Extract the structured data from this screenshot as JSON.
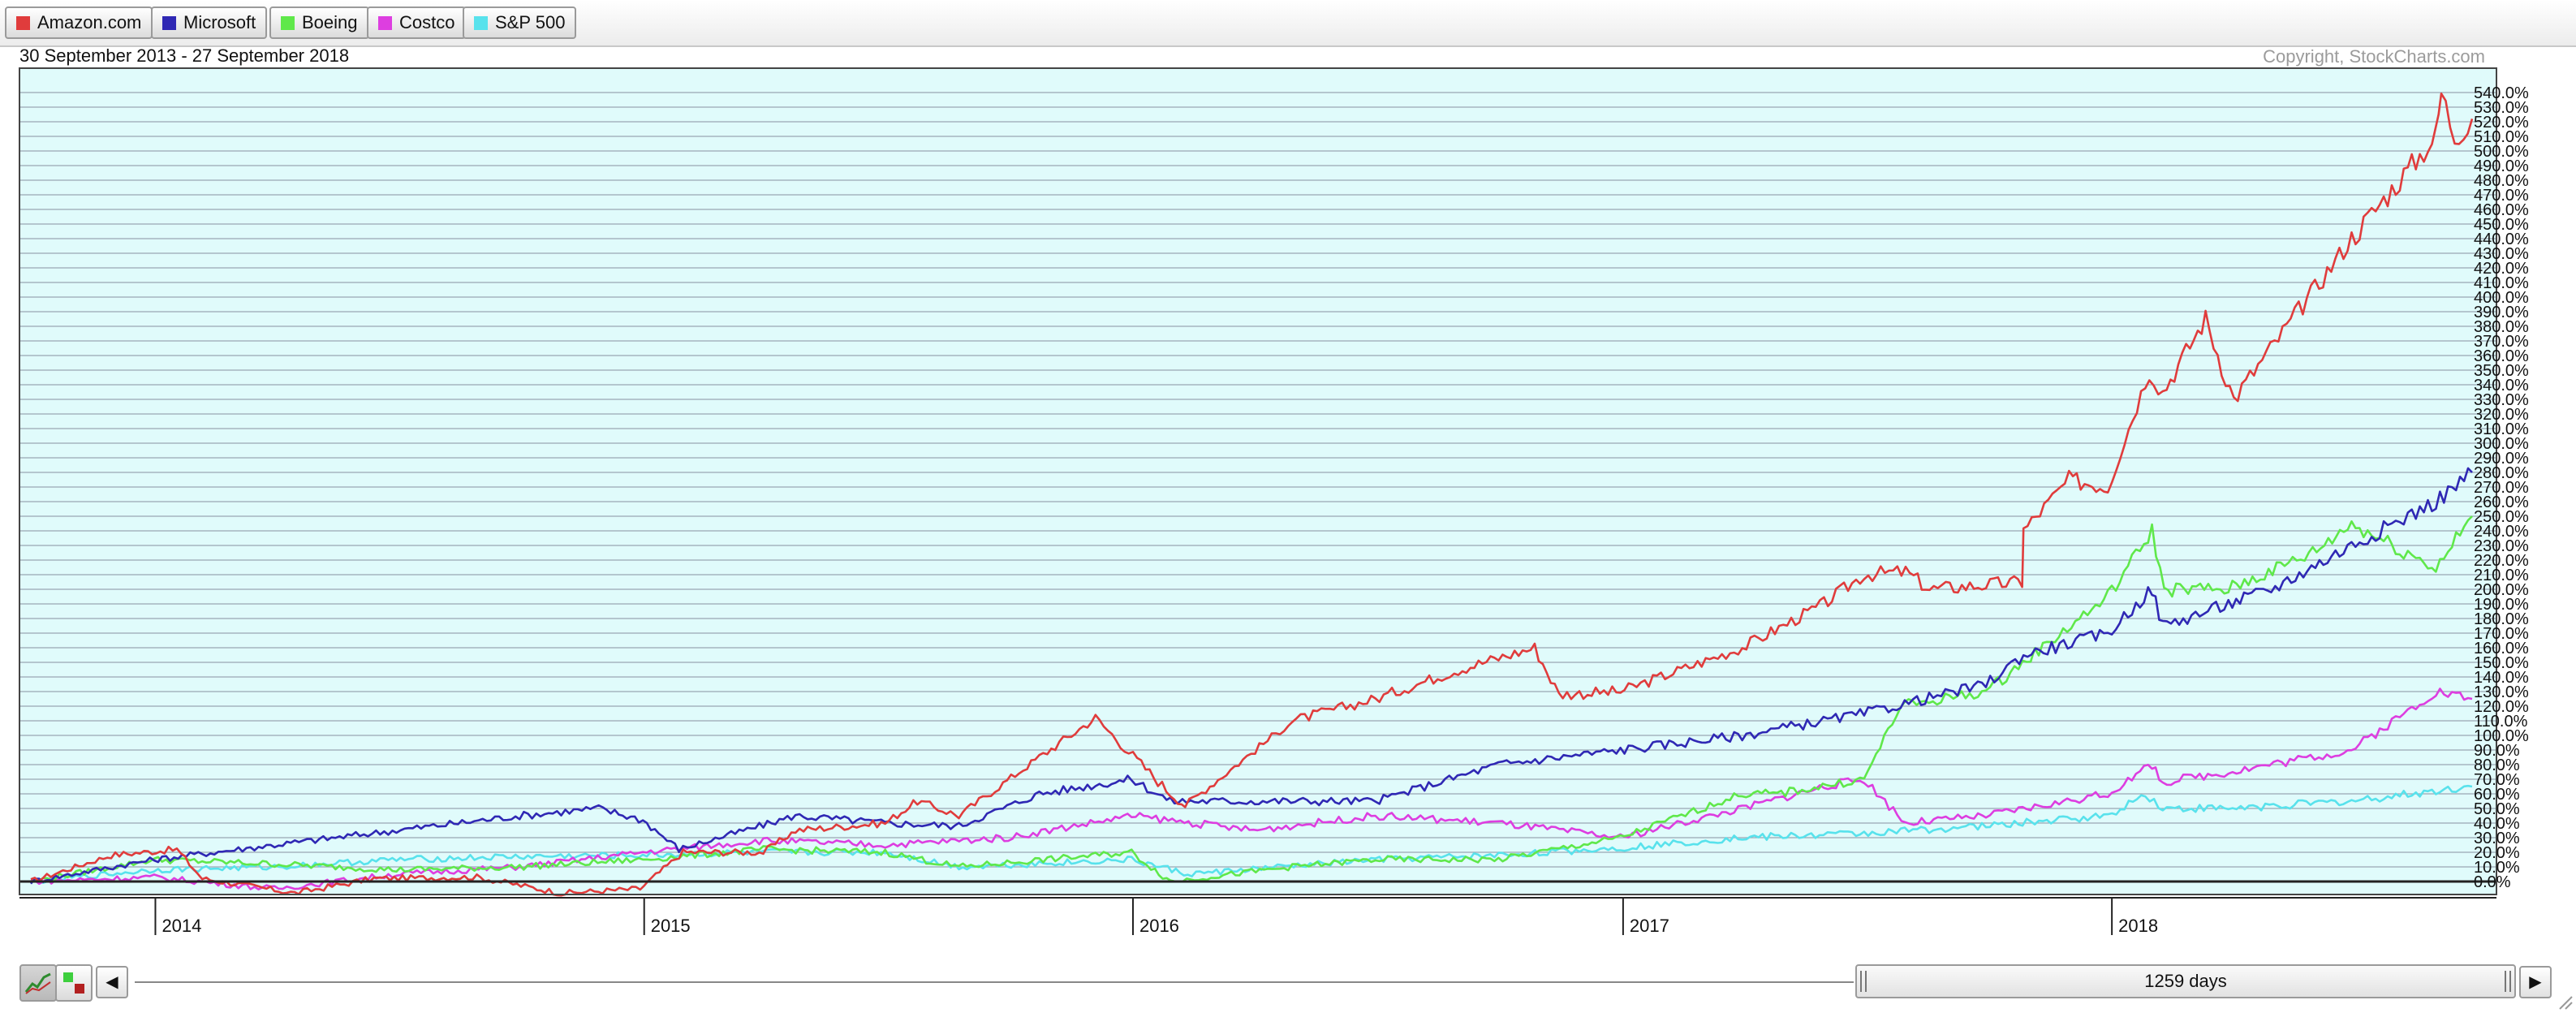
{
  "legend": [
    {
      "name": "Amazon.com",
      "color": "#e03c3c"
    },
    {
      "name": "Microsoft",
      "color": "#2f28b4"
    },
    {
      "name": "Boeing",
      "color": "#5fe84a"
    },
    {
      "name": "Costco",
      "color": "#dd3ee0"
    },
    {
      "name": "S&P 500",
      "color": "#58e2ec"
    }
  ],
  "date_range": "30 September 2013 - 27 September 2018",
  "copyright": "Copyright, StockCharts.com",
  "navigator": {
    "days_label": "1259 days",
    "prev_icon": "◀",
    "next_icon": "▶"
  },
  "chart_data": {
    "type": "line",
    "title": "",
    "date_range": "30 September 2013 - 27 September 2018",
    "x_tick_labels": [
      "2014",
      "2015",
      "2016",
      "2017",
      "2018"
    ],
    "x_range": [
      "2013-09-30",
      "2018-09-27"
    ],
    "y_unit": "%",
    "ylim": [
      0,
      540
    ],
    "y_tick_step": 10,
    "grid": true,
    "background": "#e0fbfb",
    "series": [
      {
        "name": "Amazon.com",
        "color": "#e03c3c",
        "x": [
          "2013-09-30",
          "2013-11-29",
          "2014-01-17",
          "2014-02-05",
          "2014-04-15",
          "2014-06-13",
          "2014-08-29",
          "2014-10-31",
          "2014-12-29",
          "2015-01-30",
          "2015-03-31",
          "2015-04-24",
          "2015-06-30",
          "2015-07-24",
          "2015-08-24",
          "2015-10-23",
          "2015-12-04",
          "2016-01-29",
          "2016-02-09",
          "2016-04-29",
          "2016-06-30",
          "2016-08-31",
          "2016-10-27",
          "2016-11-14",
          "2016-12-30",
          "2017-03-31",
          "2017-05-31",
          "2017-06-30",
          "2017-07-31",
          "2017-08-18",
          "2017-10-26",
          "2017-10-27",
          "2017-11-30",
          "2017-12-29",
          "2018-01-29",
          "2018-02-08",
          "2018-03-12",
          "2018-04-02",
          "2018-06-29",
          "2018-08-31",
          "2018-09-04",
          "2018-09-14",
          "2018-09-27"
        ],
        "y": [
          0,
          18,
          22,
          2,
          -8,
          2,
          3,
          -8,
          -5,
          20,
          20,
          35,
          40,
          55,
          45,
          85,
          112,
          60,
          52,
          110,
          125,
          145,
          160,
          128,
          130,
          160,
          190,
          210,
          212,
          200,
          205,
          240,
          275,
          270,
          350,
          335,
          385,
          330,
          440,
          510,
          540,
          510,
          522
        ]
      },
      {
        "name": "Microsoft",
        "color": "#2f28b4",
        "x": [
          "2013-09-30",
          "2013-12-31",
          "2014-03-31",
          "2014-06-30",
          "2014-09-30",
          "2014-11-28",
          "2014-12-31",
          "2015-01-27",
          "2015-04-24",
          "2015-06-30",
          "2015-08-24",
          "2015-10-23",
          "2015-12-31",
          "2016-01-29",
          "2016-04-22",
          "2016-06-30",
          "2016-09-30",
          "2016-12-30",
          "2017-03-31",
          "2017-06-30",
          "2017-09-29",
          "2017-10-27",
          "2017-12-29",
          "2018-01-31",
          "2018-02-08",
          "2018-03-29",
          "2018-04-30",
          "2018-06-29",
          "2018-08-31",
          "2018-09-27"
        ],
        "y": [
          0,
          15,
          25,
          35,
          45,
          50,
          42,
          22,
          45,
          40,
          38,
          60,
          70,
          55,
          55,
          55,
          80,
          90,
          100,
          115,
          135,
          155,
          170,
          200,
          175,
          190,
          200,
          230,
          260,
          280
        ]
      },
      {
        "name": "Boeing",
        "color": "#5fe84a",
        "x": [
          "2013-09-30",
          "2013-12-31",
          "2014-03-31",
          "2014-06-30",
          "2014-09-30",
          "2014-12-31",
          "2015-03-31",
          "2015-06-30",
          "2015-08-24",
          "2015-12-31",
          "2016-01-29",
          "2016-04-29",
          "2016-06-30",
          "2016-09-30",
          "2016-12-30",
          "2017-03-31",
          "2017-04-26",
          "2017-06-30",
          "2017-07-27",
          "2017-09-29",
          "2017-12-29",
          "2018-01-31",
          "2018-02-09",
          "2018-03-29",
          "2018-05-31",
          "2018-06-29",
          "2018-08-31",
          "2018-09-27"
        ],
        "y": [
          0,
          15,
          12,
          8,
          10,
          15,
          22,
          20,
          10,
          20,
          0,
          10,
          15,
          15,
          30,
          60,
          60,
          70,
          120,
          130,
          195,
          240,
          200,
          200,
          225,
          245,
          215,
          250
        ]
      },
      {
        "name": "Costco",
        "color": "#dd3ee0",
        "x": [
          "2013-09-30",
          "2013-12-31",
          "2014-03-31",
          "2014-06-30",
          "2014-09-30",
          "2014-12-31",
          "2015-03-31",
          "2015-06-30",
          "2015-09-30",
          "2015-12-31",
          "2016-03-31",
          "2016-06-30",
          "2016-09-30",
          "2016-12-30",
          "2017-03-31",
          "2017-05-31",
          "2017-06-30",
          "2017-07-31",
          "2017-09-29",
          "2017-12-29",
          "2018-01-31",
          "2018-02-08",
          "2018-03-29",
          "2018-06-29",
          "2018-08-31",
          "2018-09-27"
        ],
        "y": [
          0,
          3,
          -5,
          5,
          10,
          20,
          28,
          25,
          30,
          45,
          35,
          45,
          40,
          30,
          50,
          65,
          70,
          40,
          45,
          60,
          80,
          68,
          75,
          90,
          130,
          125
        ]
      },
      {
        "name": "S&P 500",
        "color": "#58e2ec",
        "x": [
          "2013-09-30",
          "2013-12-31",
          "2014-03-31",
          "2014-06-30",
          "2014-09-30",
          "2014-12-31",
          "2015-03-31",
          "2015-06-30",
          "2015-08-24",
          "2015-12-31",
          "2016-02-11",
          "2016-06-30",
          "2016-09-30",
          "2016-12-30",
          "2017-03-31",
          "2017-06-30",
          "2017-09-29",
          "2017-12-29",
          "2018-01-26",
          "2018-02-08",
          "2018-03-29",
          "2018-06-29",
          "2018-09-27"
        ],
        "y": [
          0,
          8,
          10,
          15,
          17,
          18,
          20,
          20,
          10,
          15,
          5,
          15,
          18,
          23,
          30,
          33,
          38,
          45,
          60,
          50,
          50,
          55,
          65
        ]
      }
    ]
  }
}
